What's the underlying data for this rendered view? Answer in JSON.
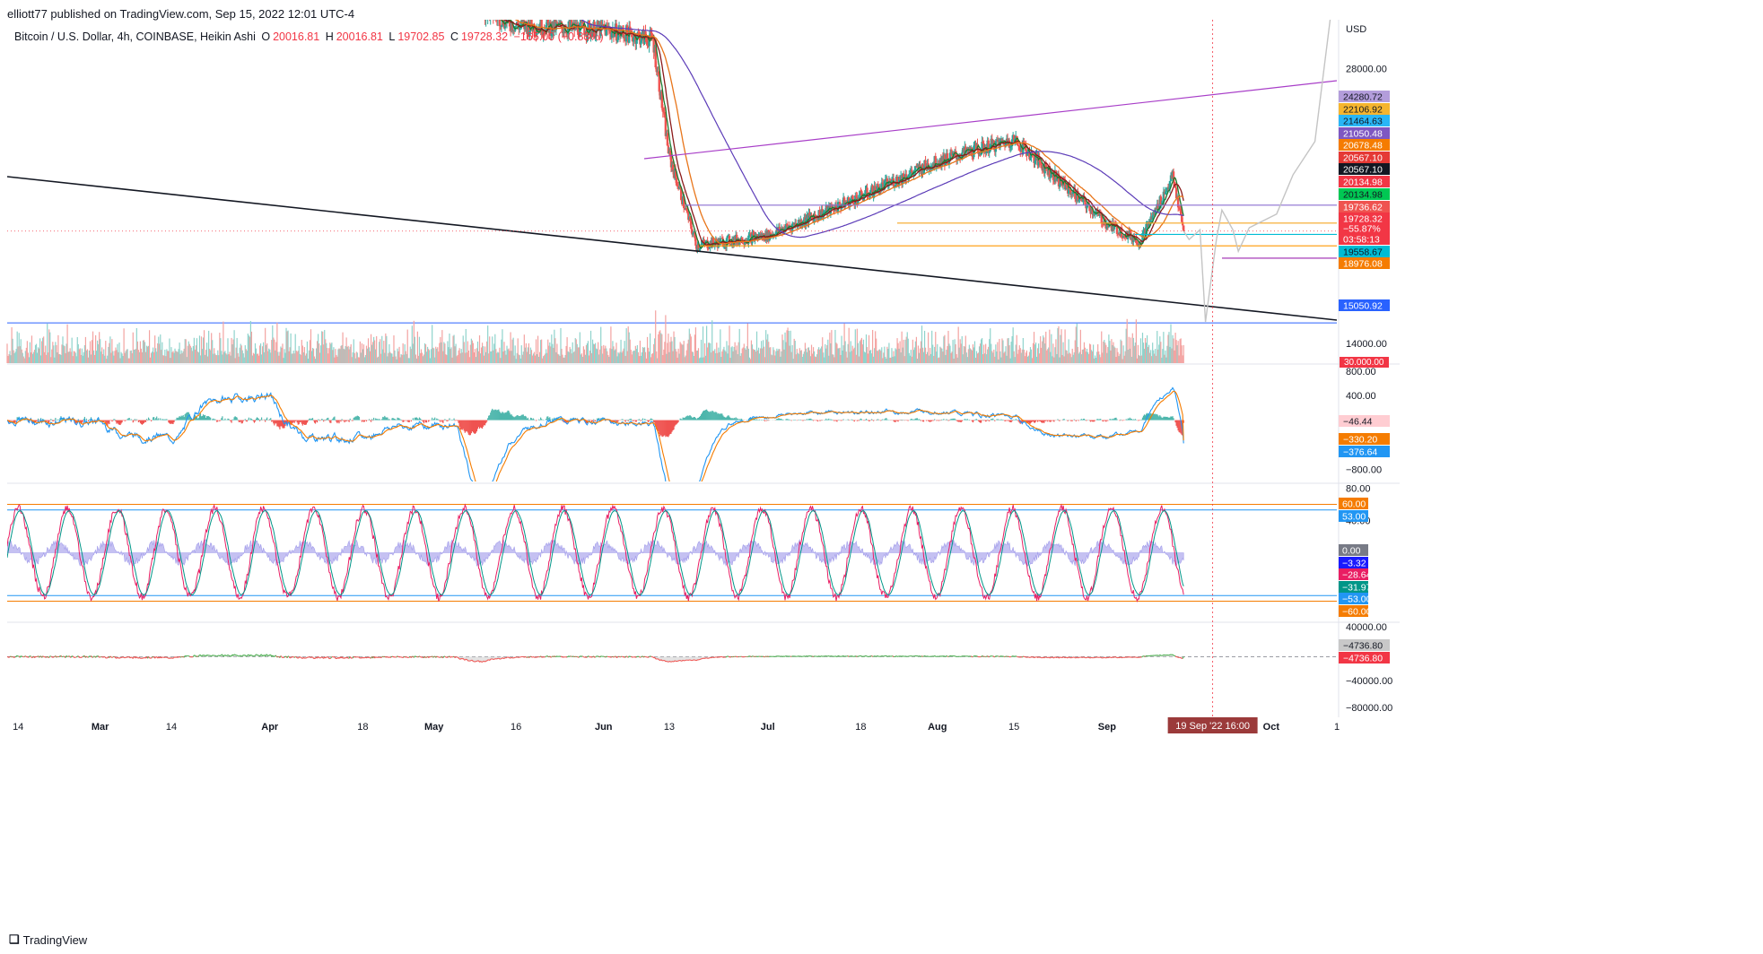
{
  "header": {
    "published": "elliott77 published on TradingView.com, Sep 15, 2022 12:01 UTC-4"
  },
  "legend": {
    "symbol": "Bitcoin / U.S. Dollar, 4h, COINBASE, Heikin Ashi",
    "o_key": "O",
    "o_val": "20016.81",
    "h_key": "H",
    "h_val": "20016.81",
    "l_key": "L",
    "l_val": "19702.85",
    "c_key": "C",
    "c_val": "19728.32",
    "change": "−165.00 (−0.83%)"
  },
  "footer": {
    "brand": "TradingView",
    "logo_icon": "tradingview-logo-icon"
  },
  "colors": {
    "up": "#26a69a",
    "down": "#ef5350",
    "bg": "#ffffff",
    "axis_text": "#131722"
  },
  "chart_data": {
    "type": "line",
    "title": "Bitcoin / U.S. Dollar, 4h, COINBASE, Heikin Ashi",
    "currency": "USD",
    "x_ticks": [
      "14",
      "Mar",
      "14",
      "Apr",
      "18",
      "May",
      "16",
      "Jun",
      "13",
      "Jul",
      "18",
      "Aug",
      "15",
      "Sep",
      "Oct",
      "1"
    ],
    "crosshair_date": "19 Sep '22   16:00",
    "price_axis": {
      "ticks": [
        "28000.00",
        "16000.00",
        "14000.00"
      ],
      "range": [
        13000,
        30500
      ]
    },
    "price_path": {
      "dates": [
        "Feb 12",
        "Mar 1",
        "Mar 15",
        "Apr 1",
        "Apr 18",
        "May 5",
        "May 10",
        "May 16",
        "Jun 1",
        "Jun 10",
        "Jun 13",
        "Jun 18",
        "Jul 1",
        "Jul 18",
        "Aug 1",
        "Aug 15",
        "Sep 1",
        "Sep 7",
        "Sep 13",
        "Sep 15"
      ],
      "close": [
        44000,
        43500,
        39500,
        45500,
        40500,
        39000,
        31000,
        30200,
        30000,
        29500,
        23500,
        19000,
        19500,
        21500,
        23300,
        24400,
        20100,
        19200,
        22500,
        19728
      ]
    },
    "moving_averages": [
      {
        "name": "MA fast",
        "color": "#1b7a2e"
      },
      {
        "name": "MA mid",
        "color": "#8b1a1a"
      },
      {
        "name": "MA slow",
        "color": "#e8751a"
      },
      {
        "name": "MA long",
        "color": "#5c3cb8"
      }
    ],
    "projection_path": {
      "color": "#c4c4c4",
      "dates": [
        "Sep 15",
        "Sep 16",
        "Sep 18",
        "Sep 19",
        "Sep 21",
        "Sep 22",
        "Sep 24",
        "Sep 25",
        "Sep 27",
        "Oct 2",
        "Oct 5",
        "Oct 9",
        "Oct 12"
      ],
      "values": [
        19728,
        19300,
        19800,
        15100,
        19300,
        20800,
        19800,
        18700,
        19900,
        20600,
        22600,
        24300,
        31000
      ]
    },
    "trendlines": [
      {
        "name": "falling black trendline",
        "color": "#131722"
      },
      {
        "name": "rising purple channel",
        "color": "#a83ec8"
      }
    ],
    "horizontal_levels": [
      {
        "value": 21050.48,
        "color": "#8b6fd0"
      },
      {
        "value": 20134.98,
        "color": "#f5a623"
      },
      {
        "value": 19558.67,
        "color": "#00bcd4"
      },
      {
        "value": 18976.08,
        "color": "#ff9800"
      },
      {
        "value": 18350,
        "color": "#9c27b0"
      },
      {
        "value": 15050.92,
        "color": "#2962ff"
      }
    ],
    "price_labels": [
      {
        "text": "24280.72",
        "bg": "#b39ddb",
        "fg": "#131722"
      },
      {
        "text": "22106.92",
        "bg": "#f5b52f",
        "fg": "#131722"
      },
      {
        "text": "21464.63",
        "bg": "#29b6f6",
        "fg": "#131722"
      },
      {
        "text": "21050.48",
        "bg": "#7e57c2",
        "fg": "#ffffff"
      },
      {
        "text": "20678.48",
        "bg": "#f57c00",
        "fg": "#ffffff"
      },
      {
        "text": "20567.10",
        "bg": "#e53935",
        "fg": "#ffffff"
      },
      {
        "text": "20567.10",
        "bg": "#131722",
        "fg": "#ffffff"
      },
      {
        "text": "20134.98",
        "bg": "#f23645",
        "fg": "#ffffff"
      },
      {
        "text": "20134.98",
        "bg": "#00c853",
        "fg": "#131722"
      },
      {
        "text": "19736.62",
        "bg": "#ef5350",
        "fg": "#ffffff"
      },
      {
        "text": "19728.32",
        "bg": "#f23645",
        "fg": "#ffffff"
      },
      {
        "text": "−55.87%",
        "bg": "#f23645",
        "fg": "#ffffff"
      },
      {
        "text": "03:58:13",
        "bg": "#f23645",
        "fg": "#ffffff"
      },
      {
        "text": "19558.67",
        "bg": "#00bcd4",
        "fg": "#131722"
      },
      {
        "text": "18976.08",
        "bg": "#f57c00",
        "fg": "#ffffff"
      },
      {
        "text": "15050.92",
        "bg": "#2962ff",
        "fg": "#ffffff"
      }
    ],
    "volume": {
      "label": "30.000.00"
    },
    "macd": {
      "ticks": [
        "800.00",
        "400.00",
        "−800.00"
      ],
      "range": [
        -1000,
        900
      ],
      "labels": [
        {
          "text": "−46.44",
          "bg": "#ffcdd2",
          "fg": "#131722"
        },
        {
          "text": "−330.20",
          "bg": "#f57c00",
          "fg": "#ffffff"
        },
        {
          "text": "−376.64",
          "bg": "#2196f3",
          "fg": "#ffffff"
        }
      ],
      "final": {
        "hist": -46,
        "macd": -377,
        "signal": -330
      }
    },
    "stoch": {
      "ticks": [
        "80.00",
        "40.00"
      ],
      "range": [
        -85,
        85
      ],
      "bands": [
        60,
        53,
        -53,
        -60
      ],
      "labels": [
        {
          "text": "60.00",
          "bg": "#f57c00",
          "fg": "#ffffff"
        },
        {
          "text": "53.00",
          "bg": "#2196f3",
          "fg": "#ffffff"
        },
        {
          "text": "0.00",
          "bg": "#787b86",
          "fg": "#ffffff"
        },
        {
          "text": "−3.32",
          "bg": "#1a1aff",
          "fg": "#ffffff"
        },
        {
          "text": "−28.64",
          "bg": "#e91e63",
          "fg": "#ffffff"
        },
        {
          "text": "−31.97",
          "bg": "#009688",
          "fg": "#ffffff"
        },
        {
          "text": "−53.00",
          "bg": "#2196f3",
          "fg": "#ffffff"
        },
        {
          "text": "−60.00",
          "bg": "#f57c00",
          "fg": "#ffffff"
        }
      ]
    },
    "oscillator": {
      "ticks": [
        "40000.00",
        "−40000.00",
        "−80000.00"
      ],
      "range": [
        -88000,
        45000
      ],
      "labels": [
        {
          "text": "−4736.80",
          "bg": "#c8c8c8",
          "fg": "#131722"
        },
        {
          "text": "−4736.80",
          "bg": "#f23645",
          "fg": "#ffffff"
        }
      ],
      "final": -4737
    }
  }
}
